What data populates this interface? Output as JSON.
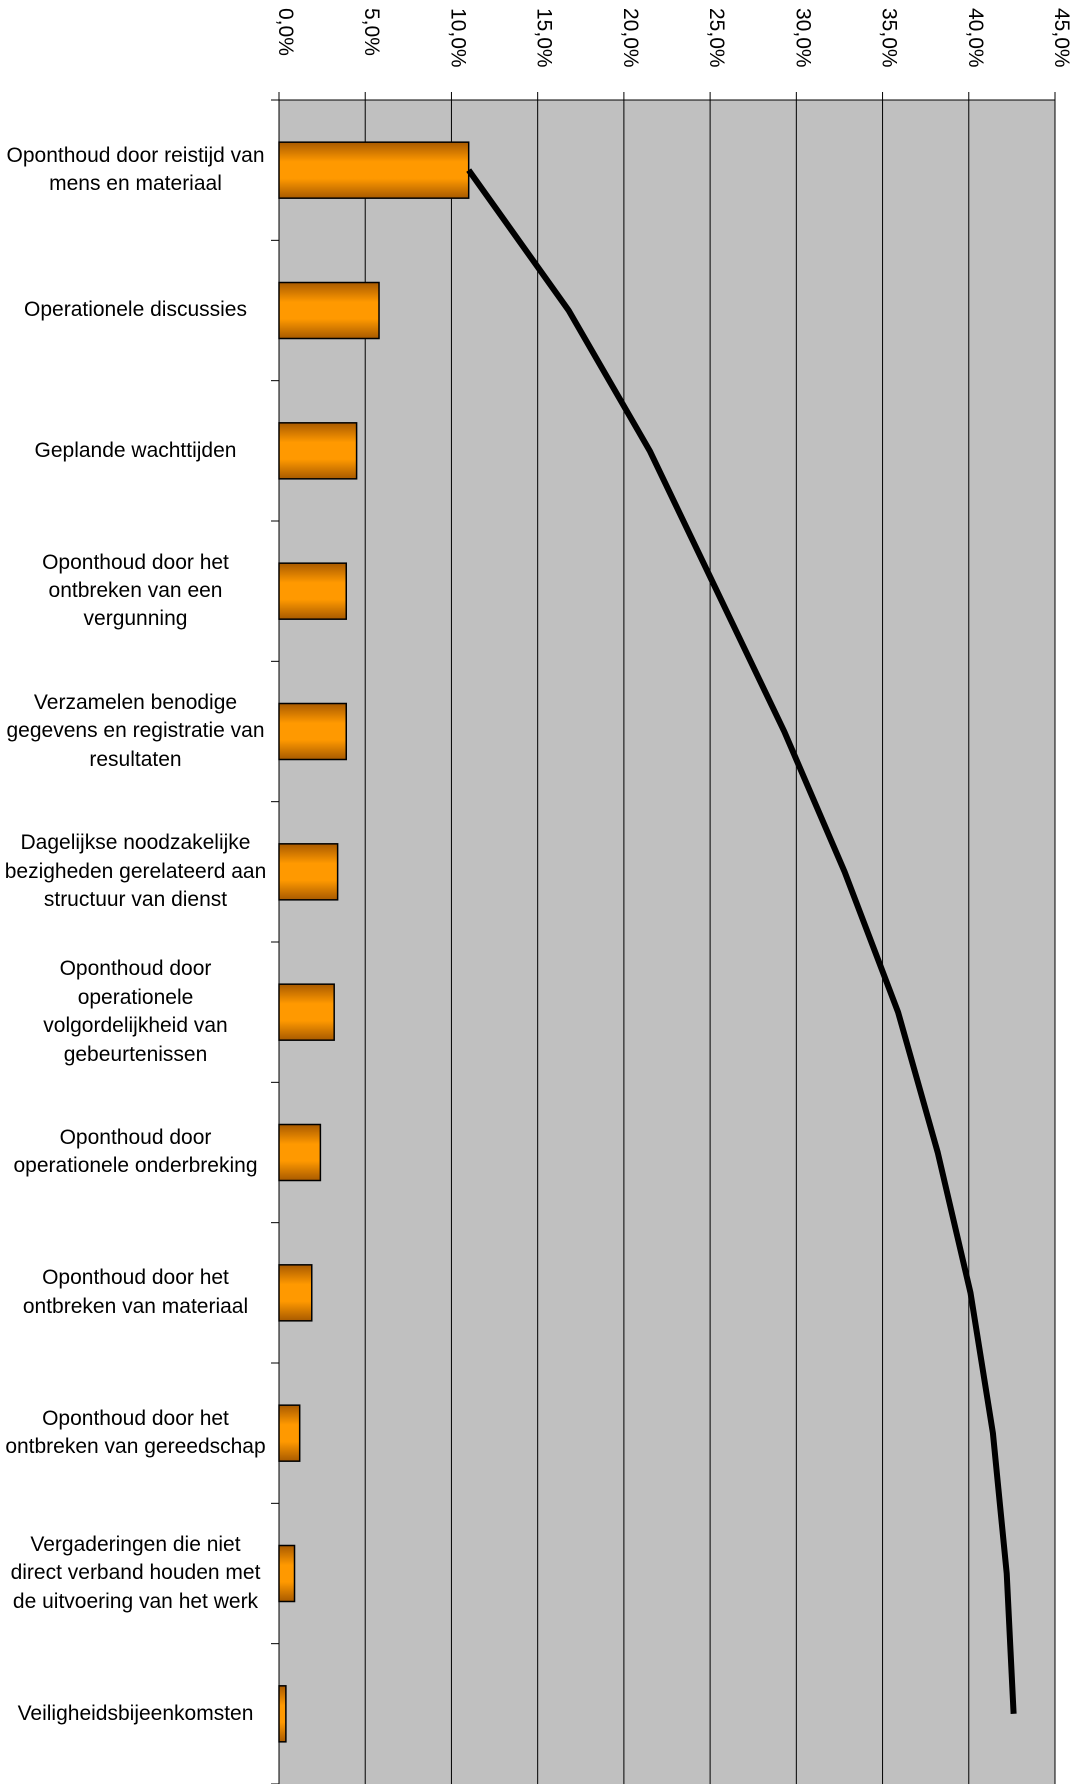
{
  "chart_data": {
    "type": "bar",
    "orientation": "horizontal",
    "categories": [
      "Oponthoud door reistijd van mens en materiaal",
      "Operationele discussies",
      "Geplande wachttijden",
      "Oponthoud door het ontbreken van een vergunning",
      "Verzamelen benodige gegevens en registratie van resultaten",
      "Dagelijkse noodzakelijke bezigheden gerelateerd aan structuur van dienst",
      "Oponthoud door operationele volgordelijkheid van gebeurtenissen",
      "Oponthoud door operationele onderbreking",
      "Oponthoud door het ontbreken van materiaal",
      "Oponthoud door het ontbreken van gereedschap",
      "Vergaderingen die niet direct verband houden met de uitvoering van het werk",
      "Veiligheidsbijeenkomsten"
    ],
    "series": [
      {
        "type": "bar",
        "color": "#ff9900",
        "values": [
          11.0,
          5.8,
          4.5,
          3.9,
          3.9,
          3.4,
          3.2,
          2.4,
          1.9,
          1.2,
          0.9,
          0.4
        ]
      },
      {
        "type": "line",
        "color": "#000000",
        "values": [
          11.0,
          16.8,
          21.5,
          25.4,
          29.3,
          32.8,
          35.9,
          38.2,
          40.1,
          41.4,
          42.2,
          42.6
        ]
      }
    ],
    "xlim": [
      0,
      45
    ],
    "xticks": [
      {
        "value": 0,
        "label": "0,0%"
      },
      {
        "value": 5,
        "label": "5,0%"
      },
      {
        "value": 10,
        "label": "10,0%"
      },
      {
        "value": 15,
        "label": "15,0%"
      },
      {
        "value": 20,
        "label": "20,0%"
      },
      {
        "value": 25,
        "label": "25,0%"
      },
      {
        "value": 30,
        "label": "30,0%"
      },
      {
        "value": 35,
        "label": "35,0%"
      },
      {
        "value": 40,
        "label": "40,0%"
      },
      {
        "value": 45,
        "label": "45,0%"
      }
    ],
    "grid": true
  }
}
